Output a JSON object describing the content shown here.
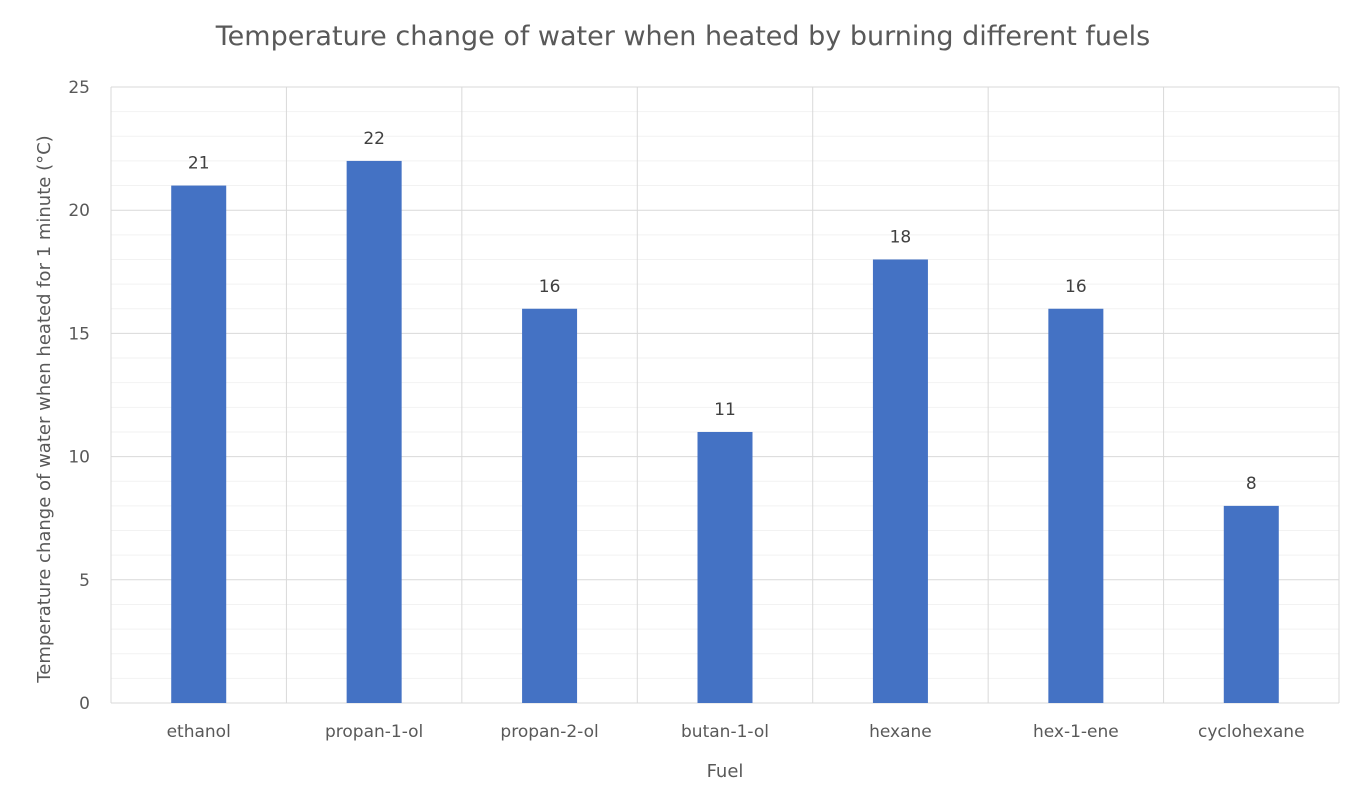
{
  "chart_data": {
    "type": "bar",
    "title": "Temperature change of water when heated by burning different fuels",
    "xlabel": "Fuel",
    "ylabel": "Temperature change of water when heated for 1 minute (°C)",
    "categories": [
      "ethanol",
      "propan-1-ol",
      "propan-2-ol",
      "butan-1-ol",
      "hexane",
      "hex-1-ene",
      "cyclohexane"
    ],
    "series": [
      {
        "values": [
          21,
          22,
          16,
          11,
          18,
          16,
          8
        ],
        "color": "#4472C4"
      }
    ],
    "ylim": [
      0,
      25
    ],
    "yticks": [
      0,
      5,
      10,
      15,
      20,
      25
    ],
    "data_labels": true,
    "grid": {
      "major": true,
      "minor": true,
      "vertical_category_lines": true
    },
    "legend": "none"
  }
}
